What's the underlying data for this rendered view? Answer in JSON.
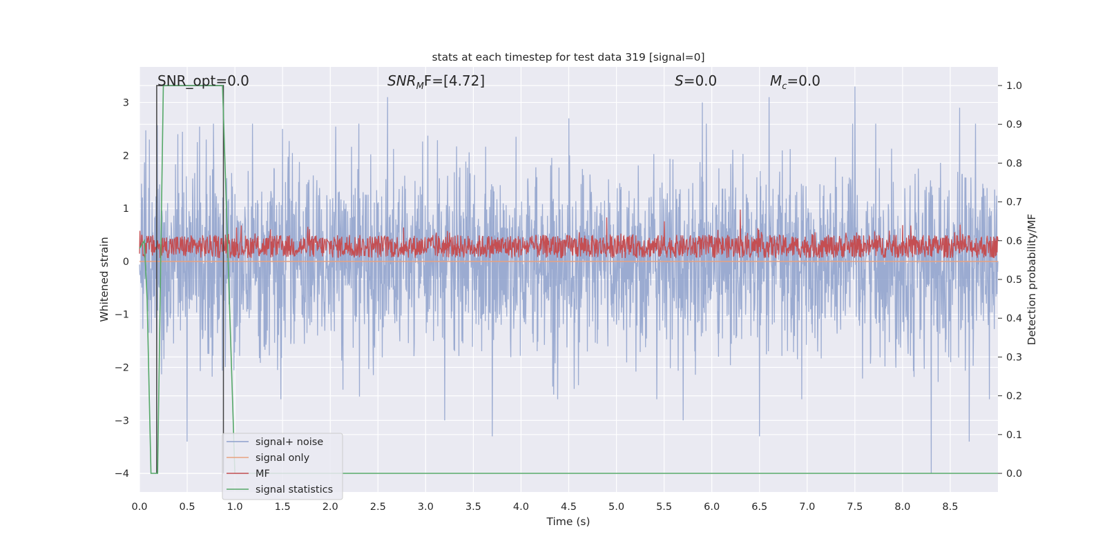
{
  "chart_data": {
    "type": "line",
    "title": "stats at each timestep for test data 319 [signal=0]",
    "xlabel": "Time (s)",
    "ylabel": "Whitened strain",
    "y2label": "Detection probability/MF",
    "xlim": [
      0.0,
      9.0
    ],
    "ylim": [
      -4.35,
      3.67
    ],
    "y2lim": [
      -0.048,
      1.048
    ],
    "xticks": [
      "0.0",
      "0.5",
      "1.0",
      "1.5",
      "2.0",
      "2.5",
      "3.0",
      "3.5",
      "4.0",
      "4.5",
      "5.0",
      "5.5",
      "6.0",
      "6.5",
      "7.0",
      "7.5",
      "8.0",
      "8.5"
    ],
    "xtick_values": [
      0,
      0.5,
      1,
      1.5,
      2,
      2.5,
      3,
      3.5,
      4,
      4.5,
      5,
      5.5,
      6,
      6.5,
      7,
      7.5,
      8,
      8.5
    ],
    "yticks": [
      "3",
      "2",
      "1",
      "0",
      "−1",
      "−2",
      "−3",
      "−4"
    ],
    "ytick_values": [
      3,
      2,
      1,
      0,
      -1,
      -2,
      -3,
      -4
    ],
    "y2ticks": [
      "1.0",
      "0.9",
      "0.8",
      "0.7",
      "0.6",
      "0.5",
      "0.4",
      "0.3",
      "0.2",
      "0.1",
      "0.0"
    ],
    "y2tick_values": [
      1.0,
      0.9,
      0.8,
      0.7,
      0.6,
      0.5,
      0.4,
      0.3,
      0.2,
      0.1,
      0.0
    ],
    "annotations": {
      "snr_opt": "SNR_opt=0.0",
      "snr_mf_base": "SNR",
      "snr_mf_sub": "M",
      "snr_mf_rest": "F=[4.72]",
      "s_base": "S",
      "s_rest": "=0.0",
      "mc_base": "M",
      "mc_sub": "c",
      "mc_rest": "=0.0"
    },
    "grid": true,
    "legend_position": "lower-left",
    "legend": [
      "signal+ noise",
      "signal only",
      "MF",
      "signal statistics"
    ],
    "colors": {
      "signal_noise": "#8da0cb",
      "signal_only": "#e8a17f",
      "mf": "#c44e52",
      "stats": "#55a868",
      "window": "#404040",
      "background": "#eaeaf2"
    },
    "series": [
      {
        "name": "signal+ noise",
        "axis": "left",
        "description": "noise trace, roughly ±1.7 typical with spikes to ±3.3",
        "envelope": [
          1.7,
          -1.7
        ],
        "peaks": [
          [
            0.4,
            2.4
          ],
          [
            0.5,
            -3.4
          ],
          [
            0.7,
            2.3
          ],
          [
            1.5,
            2.5
          ],
          [
            2.6,
            3.1
          ],
          [
            3.2,
            -3.0
          ],
          [
            3.7,
            -3.3
          ],
          [
            4.5,
            2.7
          ],
          [
            5.9,
            3.0
          ],
          [
            5.7,
            -3.0
          ],
          [
            6.5,
            -3.3
          ],
          [
            6.6,
            3.1
          ],
          [
            7.5,
            3.3
          ],
          [
            8.3,
            -4.0
          ],
          [
            8.7,
            -3.4
          ],
          [
            8.6,
            2.9
          ]
        ]
      },
      {
        "name": "signal only",
        "axis": "left",
        "x": [
          0,
          9
        ],
        "y": [
          0,
          0
        ]
      },
      {
        "name": "MF",
        "axis": "right",
        "description": "matched-filter output, typically 0.55–0.62 with peaks near 0.68",
        "baseline": 0.585,
        "peaks": [
          [
            4.9,
            0.66
          ],
          [
            5.5,
            0.65
          ],
          [
            6.3,
            0.68
          ],
          [
            8.0,
            0.64
          ]
        ]
      },
      {
        "name": "signal statistics",
        "axis": "right",
        "x": [
          0.0,
          0.05,
          0.08,
          0.12,
          0.19,
          0.25,
          0.87,
          1.0,
          1.5,
          9.0
        ],
        "y": [
          0.58,
          0.6,
          0.45,
          0.0,
          0.0,
          1.0,
          1.0,
          0.0,
          0.0,
          0.0
        ]
      },
      {
        "name": "detection window",
        "axis": "right",
        "x": [
          0.18,
          0.18,
          0.88,
          0.88
        ],
        "y": [
          0.0,
          1.0,
          1.0,
          0.0
        ]
      }
    ]
  }
}
